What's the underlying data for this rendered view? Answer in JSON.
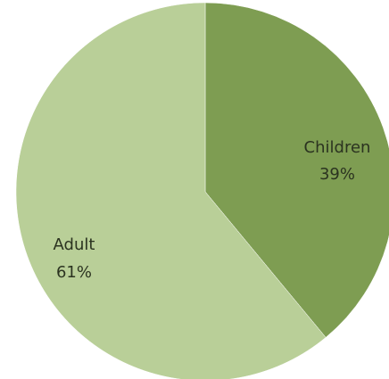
{
  "chart_data": {
    "type": "pie",
    "title": "",
    "legend": "none",
    "start_angle_deg": 0,
    "direction": "clockwise",
    "slices": [
      {
        "label": "Children",
        "value": 39,
        "display": "39%",
        "color": "#7e9d52"
      },
      {
        "label": "Adult",
        "value": 61,
        "display": "61%",
        "color": "#b9cf98"
      }
    ]
  }
}
